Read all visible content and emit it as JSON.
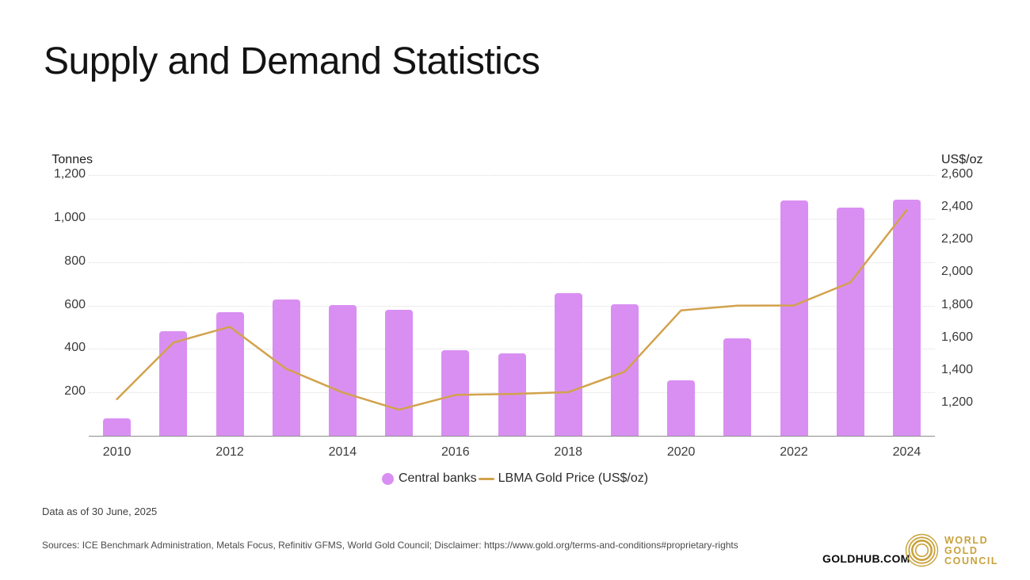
{
  "page": {
    "title": "Supply and Demand Statistics"
  },
  "chart_data": {
    "type": "bar+line",
    "x": [
      "2010",
      "2011",
      "2012",
      "2013",
      "2014",
      "2015",
      "2016",
      "2017",
      "2018",
      "2019",
      "2020",
      "2021",
      "2022",
      "2023",
      "2024"
    ],
    "x_labels_shown": [
      "2010",
      "2012",
      "2014",
      "2016",
      "2018",
      "2020",
      "2022",
      "2024"
    ],
    "series": [
      {
        "name": "Central banks",
        "type": "bar",
        "axis": "left",
        "color": "#d98ff2",
        "values": [
          79,
          481,
          569,
          629,
          601,
          580,
          395,
          379,
          656,
          605,
          255,
          450,
          1082,
          1051,
          1086
        ]
      },
      {
        "name": "LBMA Gold Price (US$/oz)",
        "type": "line",
        "axis": "right",
        "color": "#d2a24c",
        "values": [
          1225,
          1572,
          1669,
          1411,
          1266,
          1160,
          1251,
          1257,
          1268,
          1393,
          1770,
          1799,
          1800,
          1941,
          2386
        ]
      }
    ],
    "left_axis": {
      "title": "Tonnes",
      "min": 0,
      "max": 1200,
      "ticks": [
        1200,
        1000,
        800,
        600,
        400,
        200
      ],
      "labels": [
        "1,200",
        "1,000",
        "800",
        "600",
        "400",
        "200"
      ]
    },
    "right_axis": {
      "title": "US$/oz",
      "min": 1000,
      "max": 2600,
      "ticks": [
        2600,
        2400,
        2200,
        2000,
        1800,
        1600,
        1400,
        1200
      ],
      "labels": [
        "2,600",
        "2,400",
        "2,200",
        "2,000",
        "1,800",
        "1,600",
        "1,400",
        "1,200"
      ]
    },
    "grid": "horizontal dotted",
    "legend_position": "bottom-center"
  },
  "legend": {
    "items": [
      {
        "label": "Central banks",
        "swatch": "dot",
        "color": "#d98ff2"
      },
      {
        "label": "LBMA Gold Price (US$/oz)",
        "swatch": "line",
        "color": "#d2a24c"
      }
    ]
  },
  "footer": {
    "data_as_of": "Data as of 30 June, 2025",
    "sources": "Sources: ICE Benchmark Administration, Metals Focus, Refinitiv GFMS, World Gold Council; Disclaimer: https://www.gold.org/terms-and-conditions#proprietary-rights",
    "goldhub": "GOLDHUB.COM",
    "wgc_lines": [
      "WORLD",
      "GOLD",
      "COUNCIL"
    ],
    "brand_gold": "#c9a23c"
  }
}
